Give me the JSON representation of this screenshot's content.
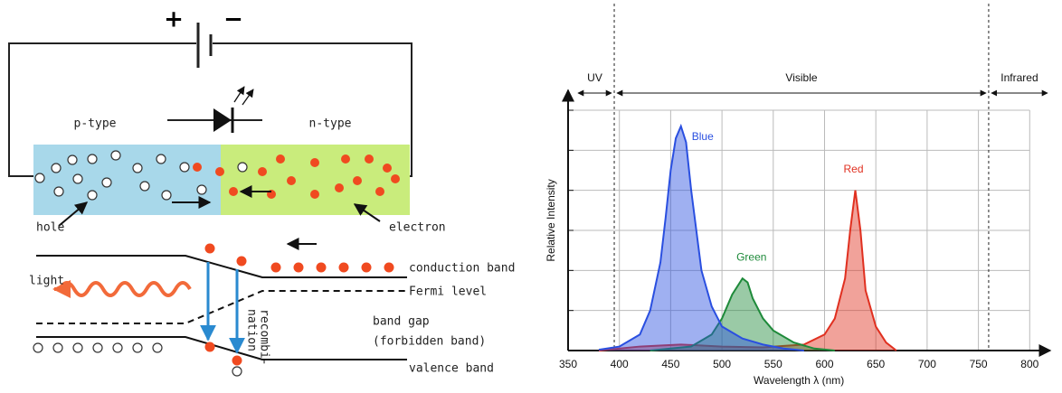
{
  "diagram": {
    "plus": "+",
    "minus": "−",
    "p_type": "p-type",
    "n_type": "n-type",
    "hole": "hole",
    "electron": "electron",
    "light": "light",
    "conduction_band": "conduction band",
    "fermi_level": "Fermi level",
    "band_gap": "band gap",
    "forbidden_band": "(forbidden band)",
    "valence_band": "valence band",
    "recombination_1": "recombi-",
    "recombination_2": "nation"
  },
  "chart_data": {
    "type": "line",
    "x_label": "Wavelength λ (nm)",
    "y_label": "Relative Intensity",
    "xlim": [
      350,
      820
    ],
    "xticks": [
      350,
      400,
      450,
      500,
      550,
      600,
      650,
      700,
      750,
      800
    ],
    "ylim": [
      0,
      6.5
    ],
    "yticks": [
      0,
      1,
      2,
      3,
      4,
      5,
      6
    ],
    "grid": true,
    "filled": true,
    "regions": [
      "UV",
      "Visible",
      "Infrared"
    ],
    "region_bounds": [
      395,
      760
    ],
    "series": [
      {
        "name": "Red",
        "color": "#e03020",
        "x": [
          380,
          420,
          460,
          500,
          540,
          580,
          600,
          610,
          620,
          625,
          630,
          635,
          640,
          650,
          660,
          670
        ],
        "values": [
          0,
          0.1,
          0.15,
          0.1,
          0.08,
          0.15,
          0.4,
          0.8,
          1.8,
          3.0,
          4.0,
          3.0,
          1.5,
          0.6,
          0.2,
          0
        ]
      },
      {
        "name": "Green",
        "color": "#1e8a3a",
        "x": [
          430,
          470,
          490,
          500,
          510,
          520,
          525,
          530,
          540,
          550,
          570,
          590,
          610
        ],
        "values": [
          0,
          0.1,
          0.4,
          0.8,
          1.4,
          1.8,
          1.7,
          1.3,
          0.8,
          0.5,
          0.2,
          0.05,
          0
        ]
      },
      {
        "name": "Blue",
        "color": "#2a4fe0",
        "x": [
          380,
          400,
          420,
          430,
          440,
          445,
          450,
          455,
          460,
          465,
          470,
          480,
          490,
          500,
          520,
          540,
          560,
          580
        ],
        "values": [
          0.02,
          0.1,
          0.4,
          1.0,
          2.2,
          3.3,
          4.5,
          5.3,
          5.6,
          5.2,
          4.0,
          2.0,
          1.1,
          0.6,
          0.3,
          0.15,
          0.05,
          0
        ]
      }
    ]
  }
}
